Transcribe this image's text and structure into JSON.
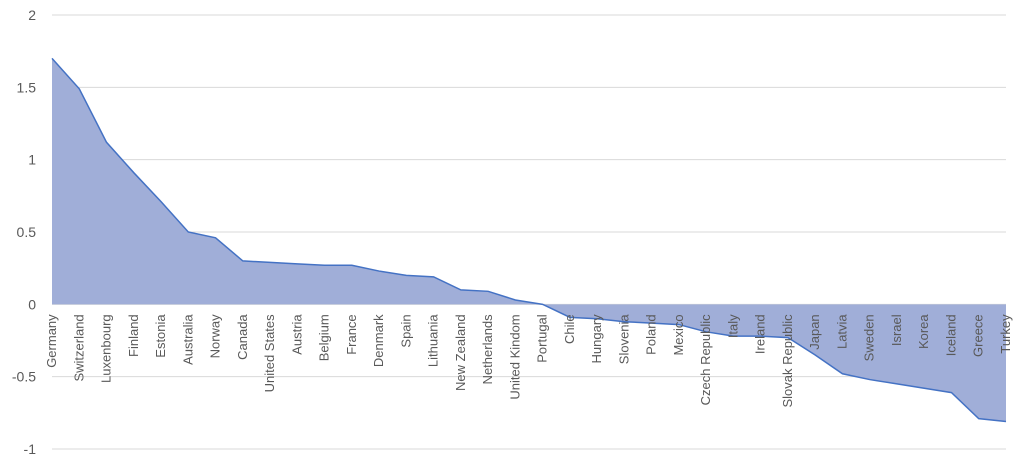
{
  "chart_data": {
    "type": "area",
    "title": "",
    "xlabel": "",
    "ylabel": "",
    "ylim": [
      -1,
      2
    ],
    "yticks": [
      "2",
      "1.5",
      "1",
      "0.5",
      "0",
      "-0.5",
      "-1"
    ],
    "grid": true,
    "legend": "none",
    "fill_color": "#a0aed8",
    "line_color": "#4472c4",
    "series": [
      {
        "categories": [
          "Germany",
          "Switzerland",
          "Luxenbourg",
          "Finland",
          "Estonia",
          "Australia",
          "Norway",
          "Canada",
          "United States",
          "Austria",
          "Belgium",
          "France",
          "Denmark",
          "Spain",
          "Lithuania",
          "New Zealand",
          "Netherlands",
          "United Kindom",
          "Portugal",
          "Chile",
          "Hungary",
          "Slovenia",
          "Poland",
          "Mexico",
          "Czech Republic",
          "Italy",
          "Ireland",
          "Slovak Republic",
          "Japan",
          "Latvia",
          "Sweden",
          "Israel",
          "Korea",
          "Iceland",
          "Greece",
          "Turkey"
        ],
        "values": [
          1.7,
          1.49,
          1.12,
          0.91,
          0.71,
          0.5,
          0.46,
          0.3,
          0.29,
          0.28,
          0.27,
          0.27,
          0.23,
          0.2,
          0.19,
          0.1,
          0.09,
          0.03,
          0.0,
          -0.09,
          -0.1,
          -0.12,
          -0.13,
          -0.14,
          -0.19,
          -0.22,
          -0.22,
          -0.23,
          -0.35,
          -0.48,
          -0.52,
          -0.55,
          -0.58,
          -0.61,
          -0.79,
          -0.81
        ]
      }
    ]
  }
}
